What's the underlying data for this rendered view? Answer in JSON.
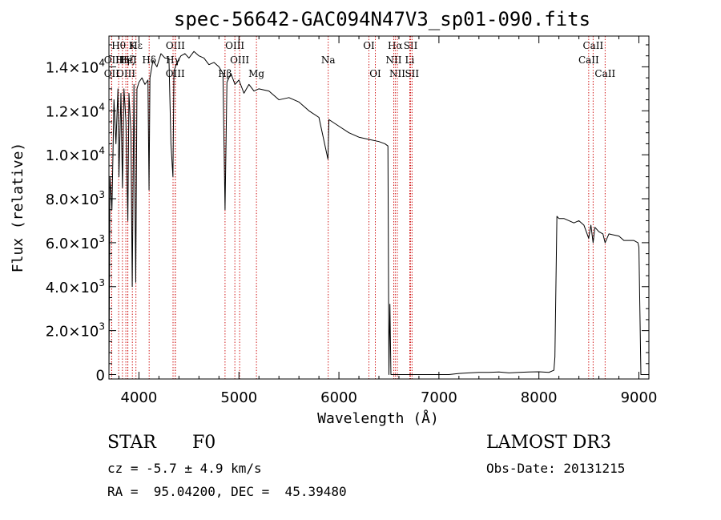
{
  "chart_data": {
    "type": "line",
    "title": "spec-56642-GAC094N47V3_sp01-090.fits",
    "xlabel": "Wavelength (Å)",
    "ylabel": "Flux (relative)",
    "xlim": [
      3700,
      9100
    ],
    "ylim": [
      -200,
      15400
    ],
    "xticks": [
      {
        "v": 4000,
        "label": "4000"
      },
      {
        "v": 5000,
        "label": "5000"
      },
      {
        "v": 6000,
        "label": "6000"
      },
      {
        "v": 7000,
        "label": "7000"
      },
      {
        "v": 8000,
        "label": "8000"
      },
      {
        "v": 9000,
        "label": "9000"
      }
    ],
    "yticks": [
      {
        "v": 0,
        "mant": "0",
        "exp": ""
      },
      {
        "v": 2000,
        "mant": "2.0×10",
        "exp": "3"
      },
      {
        "v": 4000,
        "mant": "4.0×10",
        "exp": "3"
      },
      {
        "v": 6000,
        "mant": "6.0×10",
        "exp": "3"
      },
      {
        "v": 8000,
        "mant": "8.0×10",
        "exp": "3"
      },
      {
        "v": 10000,
        "mant": "1.0×10",
        "exp": "4"
      },
      {
        "v": 12000,
        "mant": "1.2×10",
        "exp": "4"
      },
      {
        "v": 14000,
        "mant": "1.4×10",
        "exp": "4"
      }
    ],
    "series": [
      {
        "name": "flux",
        "x": [
          3700,
          3710,
          3730,
          3750,
          3770,
          3790,
          3800,
          3820,
          3835,
          3850,
          3870,
          3889,
          3900,
          3920,
          3933,
          3950,
          3968,
          3980,
          4000,
          4030,
          4060,
          4090,
          4101,
          4110,
          4140,
          4180,
          4220,
          4260,
          4300,
          4320,
          4340,
          4350,
          4380,
          4420,
          4460,
          4500,
          4550,
          4600,
          4650,
          4700,
          4750,
          4800,
          4840,
          4861,
          4880,
          4920,
          4960,
          5000,
          5050,
          5100,
          5150,
          5200,
          5300,
          5400,
          5500,
          5600,
          5700,
          5800,
          5890,
          5900,
          6000,
          6100,
          6200,
          6300,
          6400,
          6460,
          6490,
          6500,
          6510,
          6520,
          6540,
          6600,
          6700,
          6800,
          6900,
          7000,
          7100,
          7200,
          7300,
          7400,
          7500,
          7600,
          7700,
          7800,
          7900,
          8000,
          8100,
          8150,
          8160,
          8180,
          8200,
          8250,
          8300,
          8350,
          8400,
          8450,
          8498,
          8520,
          8542,
          8560,
          8600,
          8640,
          8662,
          8700,
          8800,
          8850,
          8950,
          8990,
          9000,
          9020,
          9050
        ],
        "y": [
          0,
          9000,
          7500,
          12500,
          10500,
          13000,
          9000,
          12800,
          8500,
          13000,
          11500,
          7000,
          12800,
          11000,
          4000,
          13200,
          4200,
          13000,
          13300,
          13500,
          13200,
          13400,
          8400,
          13500,
          14300,
          14000,
          14600,
          14400,
          14400,
          10500,
          9000,
          13800,
          14200,
          14500,
          14600,
          14400,
          14700,
          14500,
          14400,
          14100,
          14200,
          14000,
          13700,
          7500,
          13300,
          13700,
          13200,
          13400,
          12800,
          13200,
          12900,
          13000,
          12900,
          12500,
          12600,
          12400,
          12000,
          11700,
          9800,
          11600,
          11300,
          11000,
          10800,
          10700,
          10600,
          10500,
          10400,
          0,
          3200,
          0,
          0,
          0,
          0,
          0,
          0,
          0,
          0,
          50,
          80,
          100,
          100,
          120,
          80,
          100,
          120,
          130,
          100,
          200,
          800,
          7200,
          7100,
          7100,
          7000,
          6900,
          7000,
          6800,
          6200,
          6800,
          6000,
          6700,
          6500,
          6400,
          6000,
          6400,
          6300,
          6100,
          6100,
          6000,
          5800,
          0,
          0
        ]
      }
    ],
    "lines": [
      {
        "name": "Hθ",
        "x": 3797,
        "row": 0
      },
      {
        "name": "K",
        "x": 3934,
        "row": 0
      },
      {
        "name": "Hε",
        "x": 3970,
        "row": 0
      },
      {
        "name": "OII",
        "x": 3727,
        "row": 1
      },
      {
        "name": "Hη",
        "x": 3835,
        "row": 1
      },
      {
        "name": "HeI",
        "x": 3889,
        "row": 1
      },
      {
        "name": "Hζ",
        "x": 3889,
        "row": 1
      },
      {
        "name": "OIII",
        "x": 3869,
        "row": 2
      },
      {
        "name": "OII",
        "x": 3727,
        "row": 2
      },
      {
        "name": "Hδ",
        "x": 4102,
        "row": 1
      },
      {
        "name": "Hγ",
        "x": 4341,
        "row": 1
      },
      {
        "name": "OIII",
        "x": 4364,
        "row": 0
      },
      {
        "name": "OIII",
        "x": 4363,
        "row": 2
      },
      {
        "name": "OIII",
        "x": 4959,
        "row": 0
      },
      {
        "name": "OIII",
        "x": 5007,
        "row": 1
      },
      {
        "name": "Hβ",
        "x": 4861,
        "row": 2
      },
      {
        "name": "Mg",
        "x": 5175,
        "row": 2
      },
      {
        "name": "Na",
        "x": 5893,
        "row": 1
      },
      {
        "name": "OI",
        "x": 6300,
        "row": 0
      },
      {
        "name": "OI",
        "x": 6364,
        "row": 2
      },
      {
        "name": "Hα",
        "x": 6563,
        "row": 0
      },
      {
        "name": "NII",
        "x": 6548,
        "row": 1
      },
      {
        "name": "NII",
        "x": 6584,
        "row": 2
      },
      {
        "name": "SII",
        "x": 6717,
        "row": 0
      },
      {
        "name": "Li",
        "x": 6708,
        "row": 1
      },
      {
        "name": "SII",
        "x": 6731,
        "row": 2
      },
      {
        "name": "CaII",
        "x": 8542,
        "row": 0
      },
      {
        "name": "CaII",
        "x": 8498,
        "row": 1
      },
      {
        "name": "CaII",
        "x": 8662,
        "row": 2
      }
    ],
    "line_color": "#cc0000"
  },
  "info": {
    "object_type": "STAR",
    "subclass": "F0",
    "survey": "LAMOST DR3",
    "redshift": "cz = -5.7 ± 4.9 km/s",
    "obs_date": "Obs-Date: 20131215",
    "coords": "RA =  95.04200, DEC =  45.39480"
  }
}
